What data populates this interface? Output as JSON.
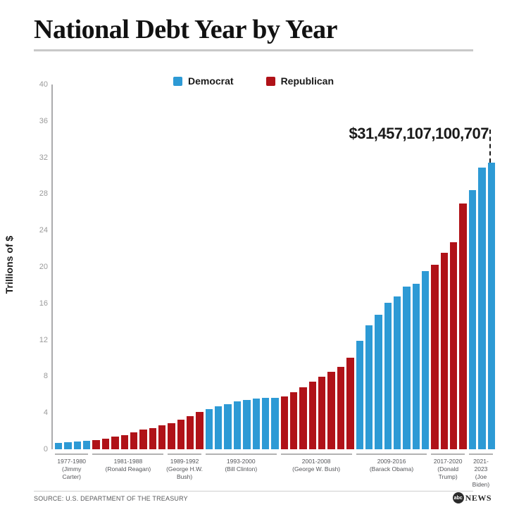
{
  "header": {
    "title": "National Debt Year by Year"
  },
  "legend": {
    "items": [
      {
        "label": "Democrat",
        "party": "democrat"
      },
      {
        "label": "Republican",
        "party": "republican"
      }
    ]
  },
  "chart_data": {
    "type": "bar",
    "title": "National Debt Year by Year",
    "ylabel": "Trillions of $",
    "xlabel": "",
    "ylim": [
      0,
      40
    ],
    "yticks": [
      0,
      4,
      8,
      12,
      16,
      20,
      24,
      28,
      32,
      36,
      40
    ],
    "grid": false,
    "legend_position": "top",
    "unit": "trillions of US dollars, one bar per year",
    "annotation": {
      "text": "$31,457,107,100,707",
      "points_to": "final 2023 bar"
    },
    "colors": {
      "democrat": "#2D9AD5",
      "republican": "#B01218"
    },
    "groups": [
      {
        "years": "1977-1980",
        "president": "(Jimmy Carter)",
        "party": "democrat",
        "values": [
          0.7,
          0.77,
          0.83,
          0.91
        ]
      },
      {
        "years": "1981-1988",
        "president": "(Ronald Reagan)",
        "party": "republican",
        "values": [
          1.0,
          1.14,
          1.38,
          1.57,
          1.82,
          2.13,
          2.35,
          2.6
        ]
      },
      {
        "years": "1989-1992",
        "president": "(George H.W. Bush)",
        "party": "republican",
        "values": [
          2.86,
          3.23,
          3.67,
          4.07
        ]
      },
      {
        "years": "1993-2000",
        "president": "(Bill Clinton)",
        "party": "democrat",
        "values": [
          4.41,
          4.69,
          4.97,
          5.22,
          5.41,
          5.53,
          5.66,
          5.67
        ]
      },
      {
        "years": "2001-2008",
        "president": "(George W. Bush)",
        "party": "republican",
        "values": [
          5.81,
          6.23,
          6.78,
          7.38,
          7.93,
          8.51,
          9.01,
          10.02
        ]
      },
      {
        "years": "2009-2016",
        "president": "(Barack Obama)",
        "party": "democrat",
        "values": [
          11.91,
          13.56,
          14.79,
          16.07,
          16.74,
          17.82,
          18.15,
          19.57
        ]
      },
      {
        "years": "2017-2020",
        "president": "(Donald Trump)",
        "party": "republican",
        "values": [
          20.25,
          21.52,
          22.72,
          26.95
        ]
      },
      {
        "years": "2021-2023",
        "president": "(Joe Biden)",
        "party": "democrat",
        "values": [
          28.43,
          30.93,
          31.46
        ]
      }
    ]
  },
  "footer": {
    "source": "SOURCE: U.S. DEPARTMENT OF THE TREASURY",
    "logo": {
      "abc": "abc",
      "news": "NEWS"
    }
  }
}
